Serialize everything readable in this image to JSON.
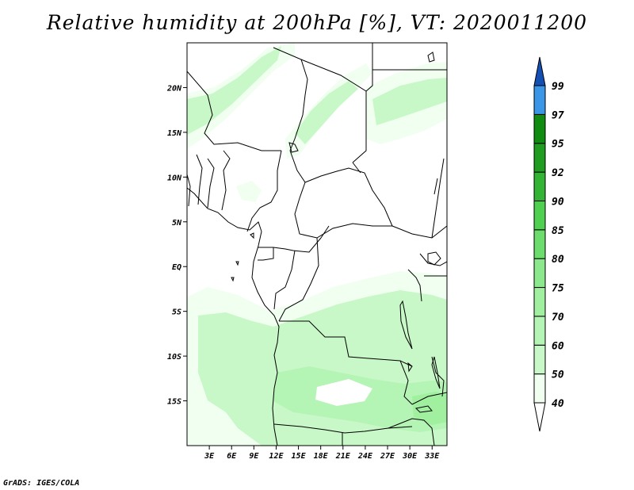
{
  "title": "Relative humidity at 200hPa [%], VT: 2020011200",
  "credit": "GrADS: IGES/COLA",
  "map": {
    "lon_range": [
      0,
      35
    ],
    "lat_range": [
      -20,
      25
    ],
    "lat_ticks": [
      {
        "value": 20,
        "label": "20N"
      },
      {
        "value": 15,
        "label": "15N"
      },
      {
        "value": 10,
        "label": "10N"
      },
      {
        "value": 5,
        "label": "5N"
      },
      {
        "value": 0,
        "label": "EQ"
      },
      {
        "value": -5,
        "label": "5S"
      },
      {
        "value": -10,
        "label": "10S"
      },
      {
        "value": -15,
        "label": "15S"
      }
    ],
    "lon_ticks": [
      {
        "value": 3,
        "label": "3E"
      },
      {
        "value": 6,
        "label": "6E"
      },
      {
        "value": 9,
        "label": "9E"
      },
      {
        "value": 12,
        "label": "12E"
      },
      {
        "value": 15,
        "label": "15E"
      },
      {
        "value": 18,
        "label": "18E"
      },
      {
        "value": 21,
        "label": "21E"
      },
      {
        "value": 24,
        "label": "24E"
      },
      {
        "value": 27,
        "label": "27E"
      },
      {
        "value": 30,
        "label": "30E"
      },
      {
        "value": 33,
        "label": "33E"
      }
    ]
  },
  "colorbar": {
    "levels": [
      "40",
      "50",
      "60",
      "70",
      "75",
      "80",
      "85",
      "90",
      "92",
      "95",
      "97",
      "99"
    ],
    "colors": [
      "#f0fff0",
      "#c8f8c8",
      "#b4f4b4",
      "#a0f0a0",
      "#8ce88c",
      "#6cdc6c",
      "#50d050",
      "#34b434",
      "#209c20",
      "#108c10",
      "#3c96e8",
      "#1e6ed2",
      "#1450b4"
    ]
  },
  "colors": {
    "land_line": "#000000",
    "shade_lightest": "#f0fff0",
    "shade_light": "#c8f8c8",
    "shade_mid": "#b4f4b4",
    "shade_dark": "#a0f0a0"
  }
}
